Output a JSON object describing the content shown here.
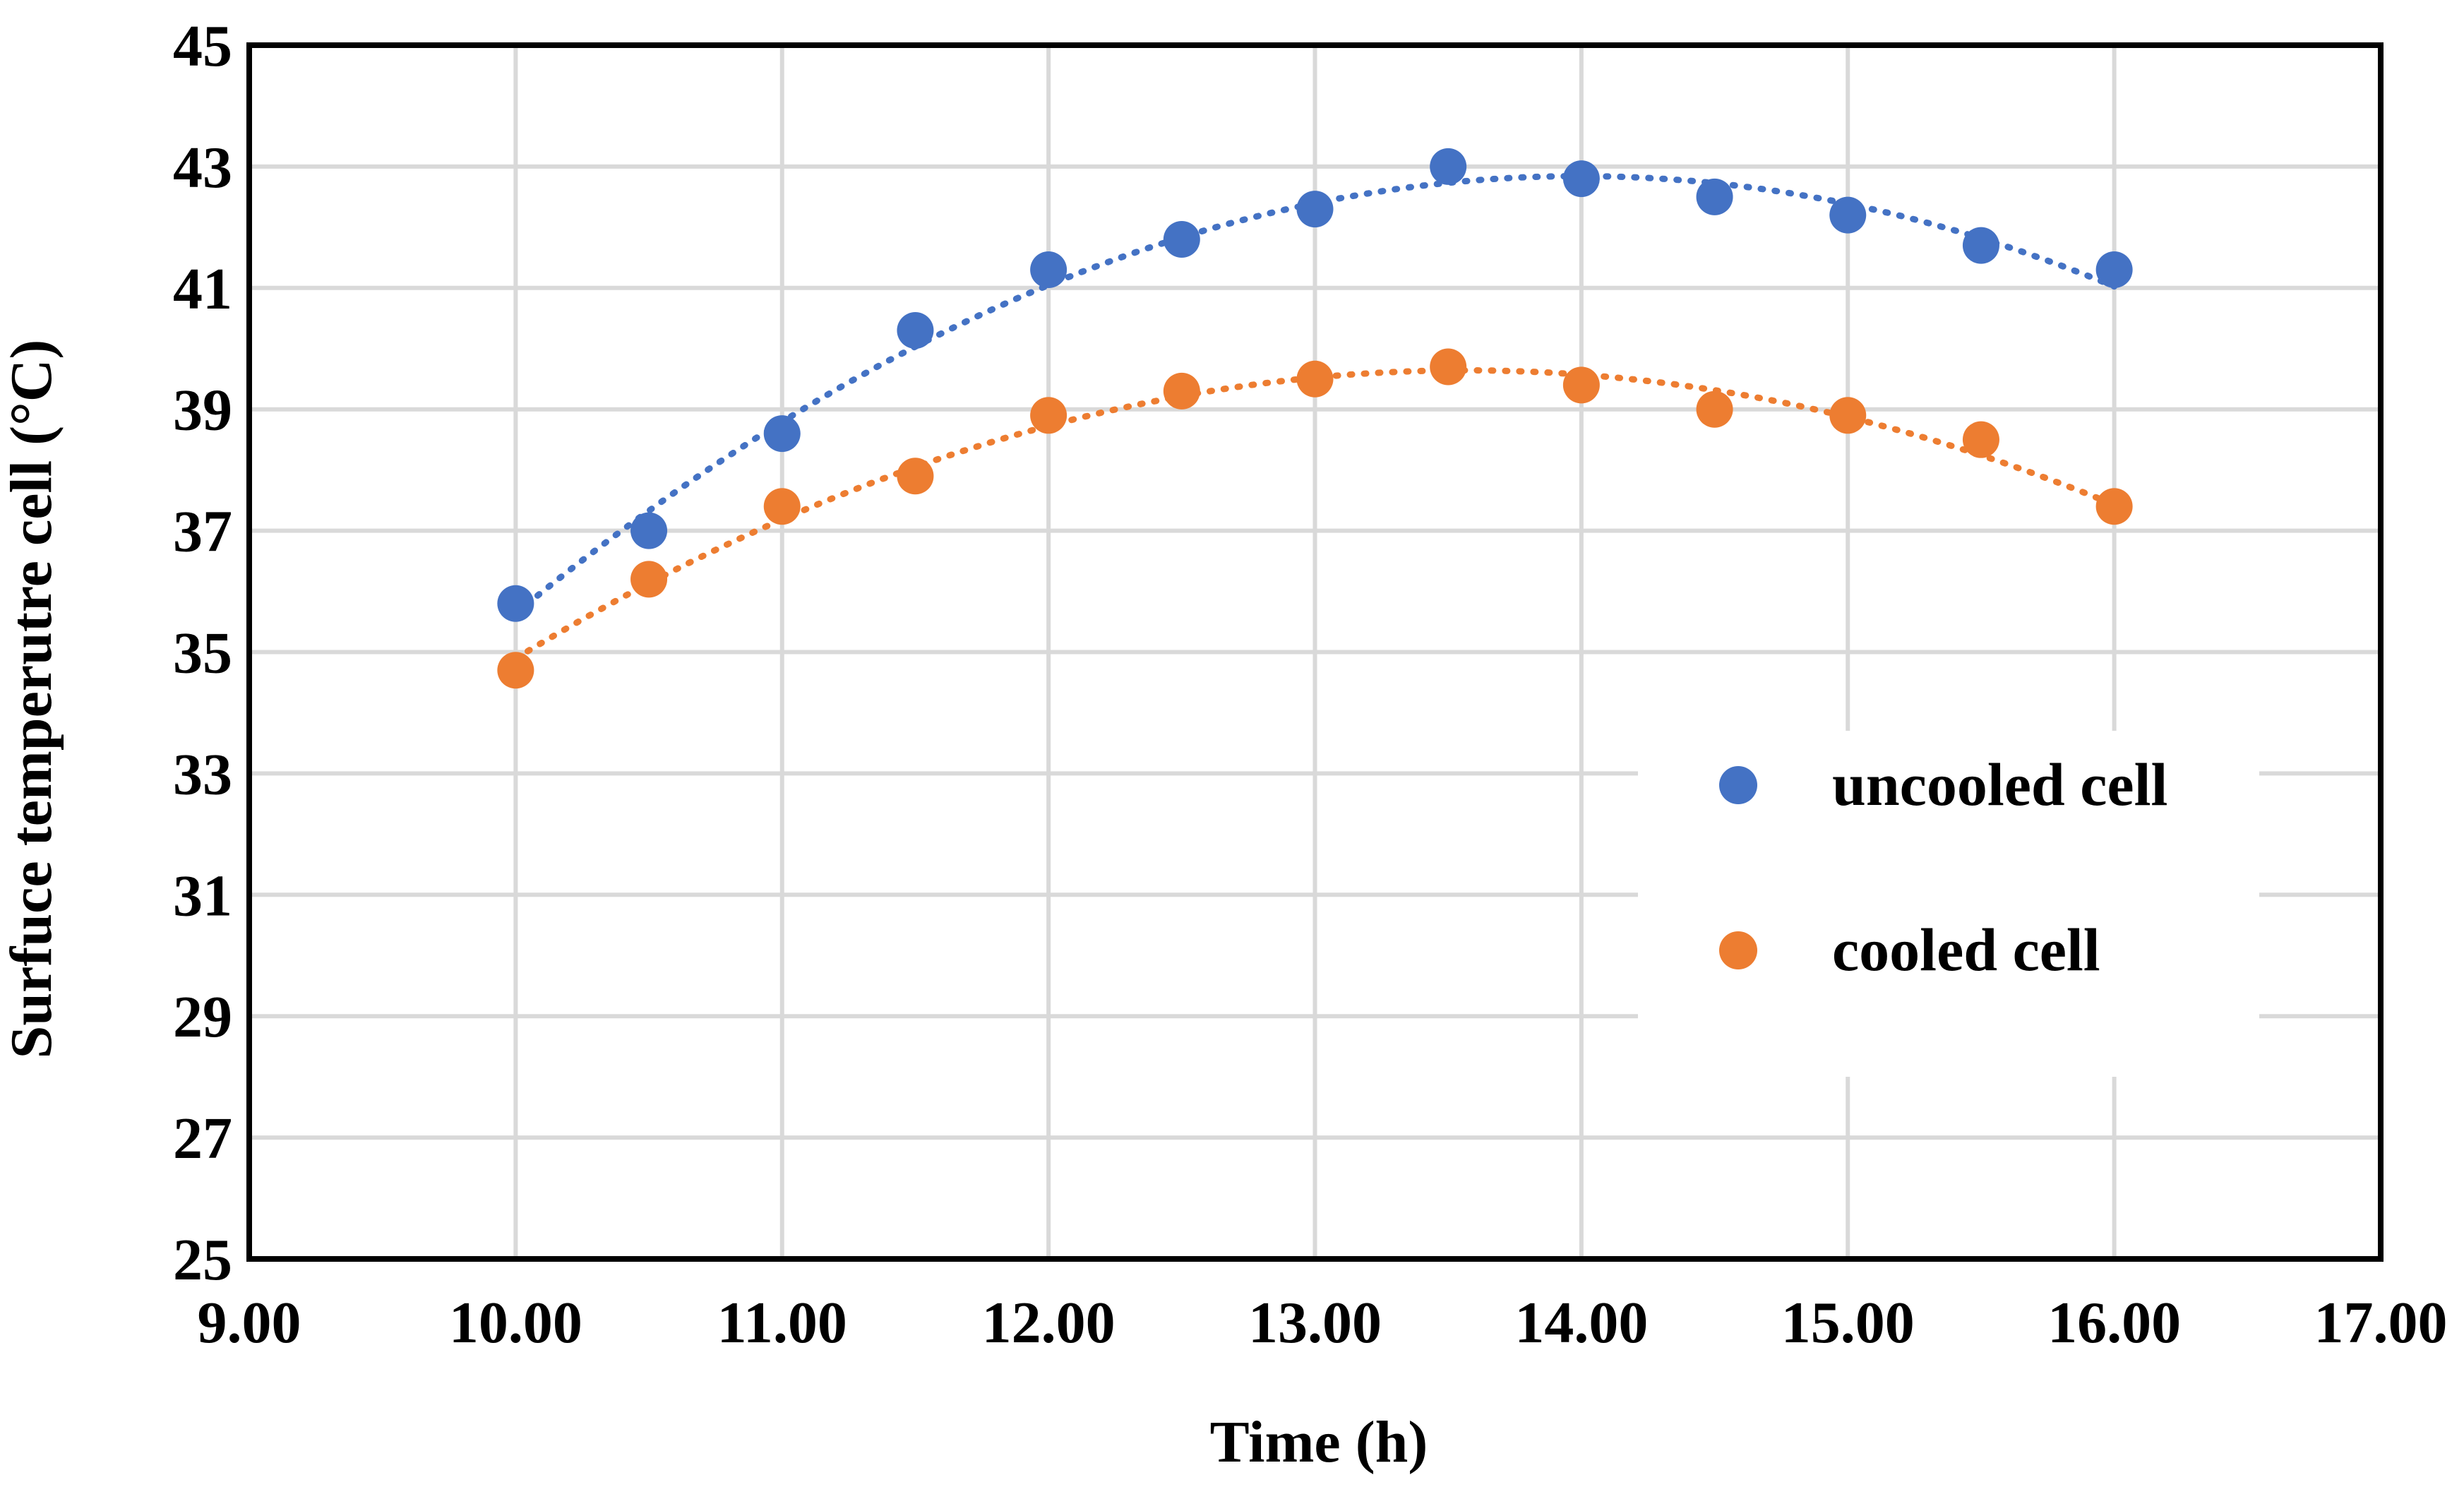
{
  "chart_data": {
    "type": "scatter",
    "title": "",
    "xlabel": "Time (h)",
    "ylabel": "Surfuce temperutre cell (°C)",
    "xlim": [
      9,
      17
    ],
    "ylim": [
      25,
      45
    ],
    "x_ticks": [
      "9.00",
      "10.00",
      "11.00",
      "12.00",
      "13.00",
      "14.00",
      "15.00",
      "16.00",
      "17.00"
    ],
    "y_ticks": [
      "25",
      "27",
      "29",
      "31",
      "33",
      "35",
      "37",
      "39",
      "41",
      "43",
      "45"
    ],
    "grid": true,
    "legend_position": "right",
    "trendline": "polynomial (dotted)",
    "series": [
      {
        "name": "uncooled cell",
        "color": "#4472c4",
        "x": [
          10.0,
          10.5,
          11.0,
          11.5,
          12.0,
          12.5,
          13.0,
          13.5,
          14.0,
          14.5,
          15.0,
          15.5,
          16.0
        ],
        "y": [
          35.8,
          37.0,
          38.6,
          40.3,
          41.3,
          41.8,
          42.3,
          43.0,
          42.8,
          42.5,
          42.2,
          41.7,
          41.3
        ]
      },
      {
        "name": "cooled cell",
        "color": "#ed7d31",
        "x": [
          10.0,
          10.5,
          11.0,
          11.5,
          12.0,
          12.5,
          13.0,
          13.5,
          14.0,
          14.5,
          15.0,
          15.5,
          16.0
        ],
        "y": [
          34.7,
          36.2,
          37.4,
          37.9,
          38.9,
          39.3,
          39.5,
          39.7,
          39.4,
          39.0,
          38.9,
          38.5,
          37.4
        ]
      }
    ]
  }
}
